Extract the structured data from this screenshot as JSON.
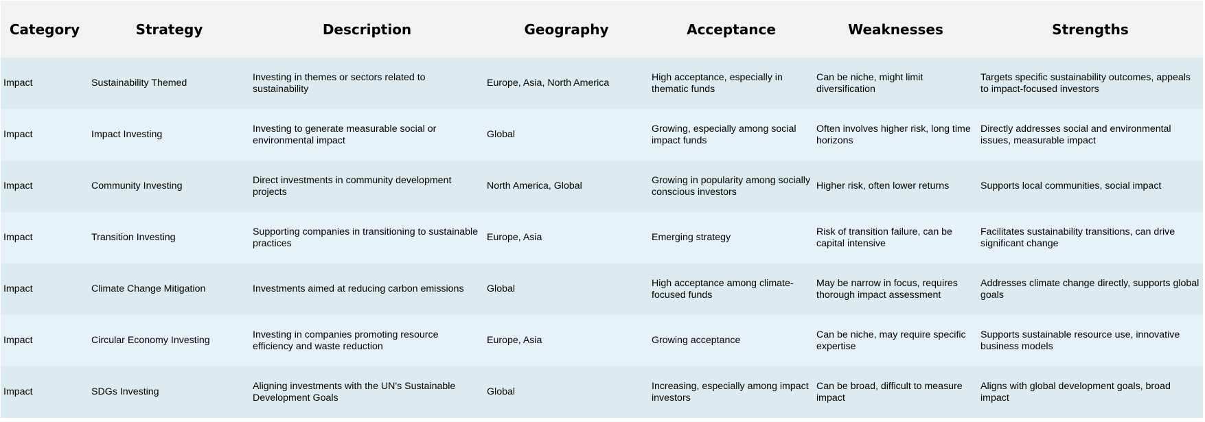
{
  "table": {
    "headers": [
      "Category",
      "Strategy",
      "Description",
      "Geography",
      "Acceptance",
      "Weaknesses",
      "Strengths"
    ],
    "rows": [
      [
        "Impact",
        "Sustainability Themed",
        "Investing in themes or sectors related to sustainability",
        "Europe, Asia, North America",
        "High acceptance, especially in thematic funds",
        "Can be niche, might limit diversification",
        "Targets specific sustainability outcomes, appeals to impact-focused investors"
      ],
      [
        "Impact",
        "Impact Investing",
        "Investing to generate measurable social or environmental impact",
        "Global",
        "Growing, especially among social impact funds",
        "Often involves higher risk, long time horizons",
        "Directly addresses social and environmental issues, measurable impact"
      ],
      [
        "Impact",
        "Community Investing",
        "Direct investments in community development projects",
        "North America, Global",
        "Growing in popularity among socially conscious investors",
        "Higher risk, often lower returns",
        "Supports local communities, social impact"
      ],
      [
        "Impact",
        "Transition Investing",
        "Supporting companies in transitioning to sustainable practices",
        "Europe, Asia",
        "Emerging strategy",
        "Risk of transition failure, can be capital intensive",
        "Facilitates sustainability transitions, can drive significant change"
      ],
      [
        "Impact",
        "Climate Change Mitigation",
        "Investments aimed at reducing carbon emissions",
        "Global",
        "High acceptance among climate-focused funds",
        "May be narrow in focus, requires thorough impact assessment",
        "Addresses climate change directly, supports global goals"
      ],
      [
        "Impact",
        "Circular Economy Investing",
        "Investing in companies promoting resource efficiency and waste reduction",
        "Europe, Asia",
        "Growing acceptance",
        "Can be niche, may require specific expertise",
        "Supports sustainable resource use, innovative business models"
      ],
      [
        "Impact",
        "SDGs Investing",
        "Aligning investments with the UN's Sustainable Development Goals",
        "Global",
        "Increasing, especially among impact investors",
        "Can be broad, difficult to measure impact",
        "Aligns with global development goals, broad impact"
      ]
    ]
  }
}
